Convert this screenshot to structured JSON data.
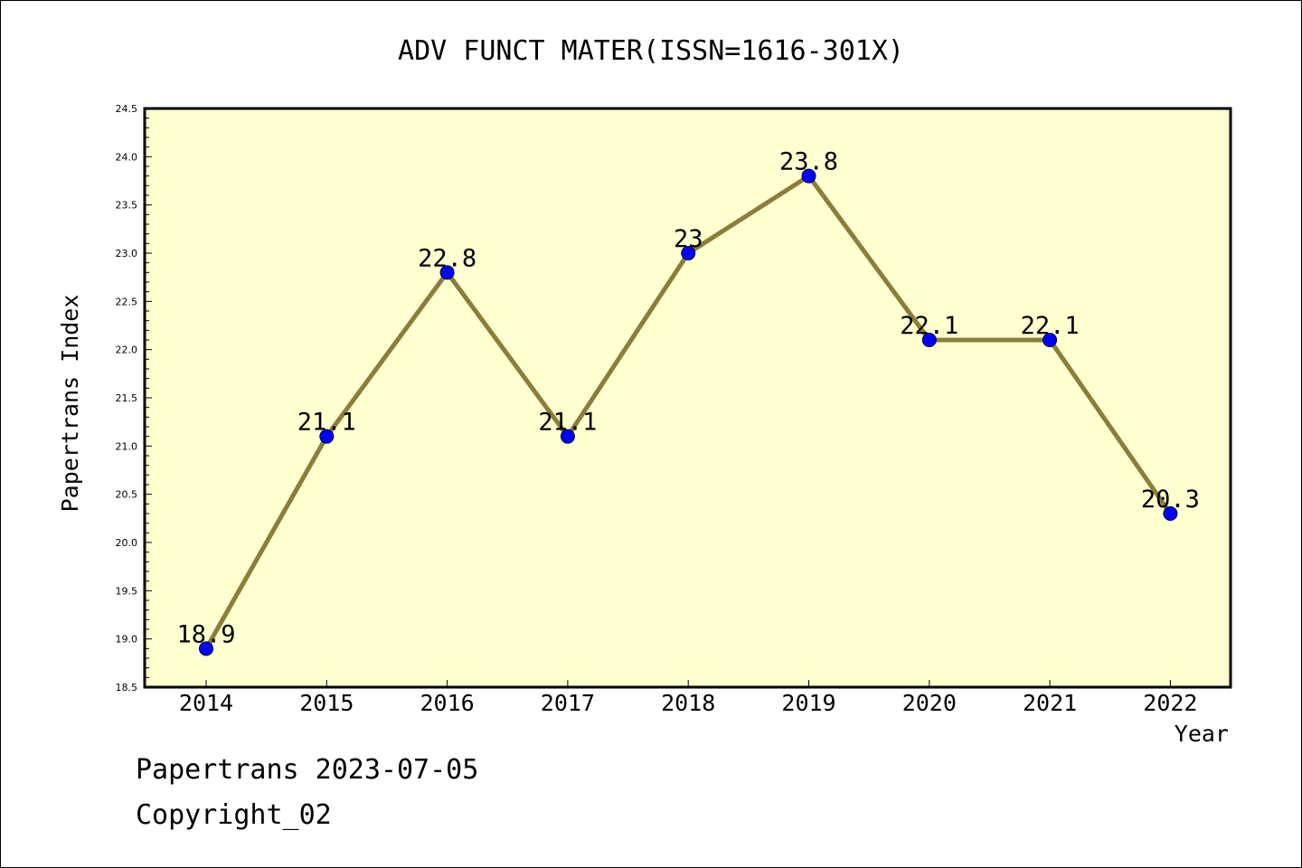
{
  "chart_data": {
    "type": "line",
    "title": "ADV FUNCT MATER(ISSN=1616-301X)",
    "xlabel": "Year",
    "ylabel": "Papertrans Index",
    "categories": [
      "2014",
      "2015",
      "2016",
      "2017",
      "2018",
      "2019",
      "2020",
      "2021",
      "2022"
    ],
    "series": [
      {
        "values": [
          18.9,
          21.1,
          22.8,
          21.1,
          23,
          23.8,
          22.1,
          22.1,
          20.3
        ],
        "data_labels": [
          "18.9",
          "21.1",
          "22.8",
          "21.1",
          "23",
          "23.8",
          "22.1",
          "22.1",
          "20.3"
        ]
      }
    ],
    "ylim": [
      18.5,
      24.5
    ],
    "yticks": [
      "18.5",
      "19.0",
      "19.5",
      "20.0",
      "20.5",
      "21.0",
      "21.5",
      "22.0",
      "22.5",
      "23.0",
      "23.5",
      "24.0",
      "24.5"
    ],
    "grid": false,
    "legend": "none",
    "colors": {
      "plot_background": "#ffffd0",
      "line": "#8b7d3a",
      "marker": "#0000ff",
      "axis": "#000000"
    }
  },
  "footer": {
    "line1": "Papertrans 2023-07-05",
    "line2": "Copyright_02"
  }
}
